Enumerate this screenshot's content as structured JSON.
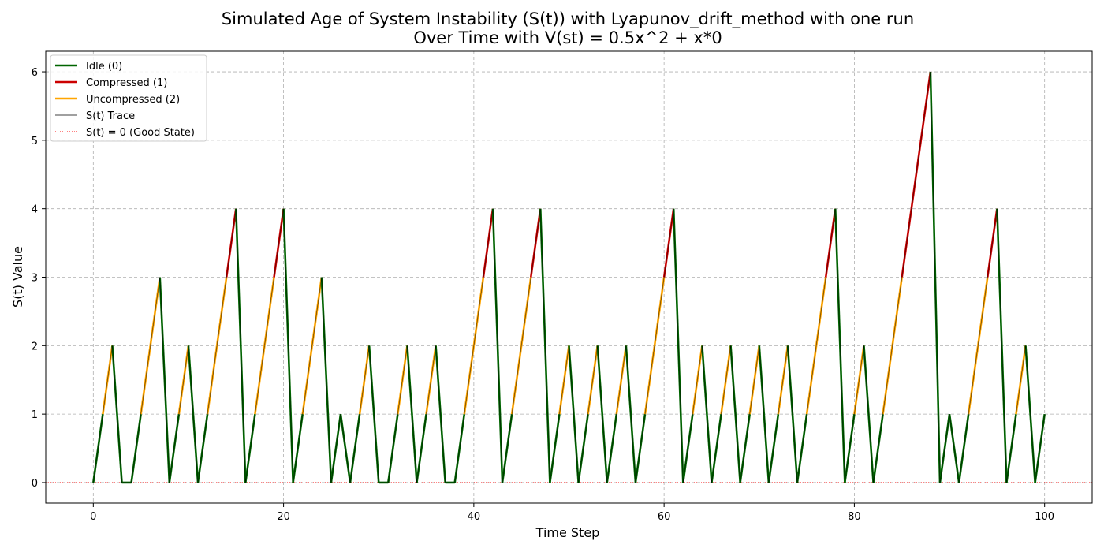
{
  "chart_data": {
    "type": "line",
    "title_line1": "Simulated Age of System Instability (S(t)) with Lyapunov_drift_method with one run",
    "title_line2": "Over Time with V(st) = 0.5x^2 + x*0",
    "xlabel": "Time Step",
    "ylabel": "S(t) Value",
    "xlim": [
      -5,
      105
    ],
    "ylim": [
      -0.3,
      6.3
    ],
    "xticks": [
      0,
      20,
      40,
      60,
      80,
      100
    ],
    "yticks": [
      0,
      1,
      2,
      3,
      4,
      5,
      6
    ],
    "grid": true,
    "legend_position": "upper-left",
    "legend": [
      {
        "label": "Idle (0)",
        "color": "#006400",
        "style": "solid-thick"
      },
      {
        "label": "Compressed (1)",
        "color": "#cc0000",
        "style": "solid-thick"
      },
      {
        "label": "Uncompressed (2)",
        "color": "#ffa500",
        "style": "solid-thick"
      },
      {
        "label": "S(t) Trace",
        "color": "#000000",
        "style": "solid-thin"
      },
      {
        "label": "S(t) = 0 (Good State)",
        "color": "#ff0000",
        "style": "dotted"
      }
    ],
    "state_colors": {
      "0": "#006400",
      "1": "#cc0000",
      "2": "#ffa500"
    },
    "reference_line": {
      "y": 0,
      "color": "#ff0000"
    },
    "x": [
      0,
      1,
      2,
      3,
      4,
      5,
      6,
      7,
      8,
      9,
      10,
      11,
      12,
      13,
      14,
      15,
      16,
      17,
      18,
      19,
      20,
      21,
      22,
      23,
      24,
      25,
      26,
      27,
      28,
      29,
      30,
      31,
      32,
      33,
      34,
      35,
      36,
      37,
      38,
      39,
      40,
      41,
      42,
      43,
      44,
      45,
      46,
      47,
      48,
      49,
      50,
      51,
      52,
      53,
      54,
      55,
      56,
      57,
      58,
      59,
      60,
      61,
      62,
      63,
      64,
      65,
      66,
      67,
      68,
      69,
      70,
      71,
      72,
      73,
      74,
      75,
      76,
      77,
      78,
      79,
      80,
      81,
      82,
      83,
      84,
      85,
      86,
      87,
      88,
      89,
      90,
      91,
      92,
      93,
      94,
      95,
      96,
      97,
      98,
      99,
      100
    ],
    "values": [
      0,
      1,
      2,
      0,
      0,
      1,
      2,
      3,
      0,
      1,
      2,
      0,
      1,
      2,
      3,
      4,
      0,
      1,
      2,
      3,
      4,
      0,
      1,
      2,
      3,
      0,
      1,
      0,
      1,
      2,
      0,
      0,
      1,
      2,
      0,
      1,
      2,
      0,
      0,
      1,
      2,
      3,
      4,
      0,
      1,
      2,
      3,
      4,
      0,
      1,
      2,
      0,
      1,
      2,
      0,
      1,
      2,
      0,
      1,
      2,
      3,
      4,
      0,
      1,
      2,
      0,
      1,
      2,
      0,
      1,
      2,
      0,
      1,
      2,
      0,
      1,
      2,
      3,
      4,
      0,
      1,
      2,
      0,
      1,
      2,
      3,
      4,
      5,
      6,
      0,
      1,
      0,
      1,
      2,
      3,
      4,
      0,
      1,
      2,
      0,
      1
    ],
    "actions": [
      0,
      0,
      2,
      0,
      0,
      0,
      2,
      2,
      0,
      0,
      2,
      0,
      0,
      2,
      2,
      1,
      0,
      0,
      2,
      2,
      1,
      0,
      0,
      2,
      2,
      0,
      0,
      0,
      0,
      2,
      0,
      0,
      0,
      2,
      0,
      0,
      2,
      0,
      0,
      0,
      2,
      2,
      1,
      0,
      0,
      2,
      2,
      1,
      0,
      0,
      2,
      0,
      0,
      2,
      0,
      0,
      2,
      0,
      0,
      2,
      2,
      1,
      0,
      0,
      2,
      0,
      0,
      2,
      0,
      0,
      2,
      0,
      0,
      2,
      0,
      0,
      2,
      2,
      1,
      0,
      0,
      2,
      0,
      0,
      2,
      2,
      1,
      1,
      1,
      0,
      0,
      0,
      0,
      2,
      2,
      1,
      0,
      0,
      2,
      0,
      0
    ]
  }
}
